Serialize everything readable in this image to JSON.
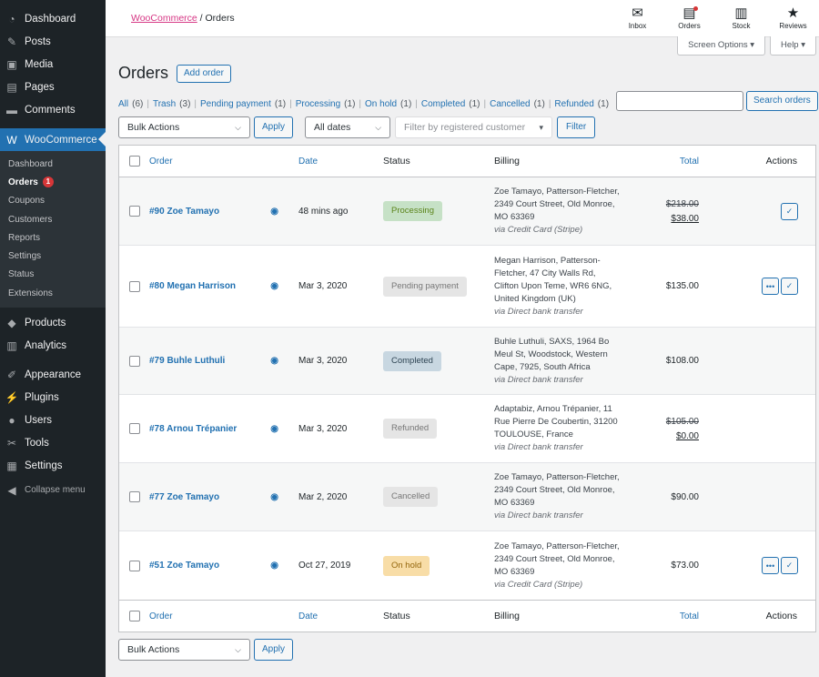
{
  "sidebar": {
    "top_items": [
      {
        "label": "Dashboard",
        "icon": "dashboard-icon"
      },
      {
        "label": "Posts",
        "icon": "pin-icon"
      },
      {
        "label": "Media",
        "icon": "media-icon"
      },
      {
        "label": "Pages",
        "icon": "pages-icon"
      },
      {
        "label": "Comments",
        "icon": "comment-icon"
      }
    ],
    "woocommerce": {
      "label": "WooCommerce",
      "icon": "woo-icon"
    },
    "submenu": [
      {
        "label": "Dashboard"
      },
      {
        "label": "Orders",
        "badge": "1"
      },
      {
        "label": "Coupons"
      },
      {
        "label": "Customers"
      },
      {
        "label": "Reports"
      },
      {
        "label": "Settings"
      },
      {
        "label": "Status"
      },
      {
        "label": "Extensions"
      }
    ],
    "mid_items": [
      {
        "label": "Products",
        "icon": "box-icon"
      },
      {
        "label": "Analytics",
        "icon": "bar-chart-icon"
      }
    ],
    "bottom_items": [
      {
        "label": "Appearance",
        "icon": "brush-icon"
      },
      {
        "label": "Plugins",
        "icon": "plugin-icon"
      },
      {
        "label": "Users",
        "icon": "user-icon"
      },
      {
        "label": "Tools",
        "icon": "wrench-icon"
      },
      {
        "label": "Settings",
        "icon": "settings-icon"
      }
    ],
    "collapse_label": "Collapse menu"
  },
  "topbar": {
    "breadcrumb_root": "WooCommerce",
    "breadcrumb_sep": "/",
    "breadcrumb_current": "Orders",
    "icons": [
      {
        "label": "Inbox",
        "icon": "inbox-icon"
      },
      {
        "label": "Orders",
        "icon": "orders-icon"
      },
      {
        "label": "Stock",
        "icon": "stock-icon"
      },
      {
        "label": "Reviews",
        "icon": "star-icon"
      }
    ],
    "screen_options": "Screen Options ▾",
    "help": "Help ▾"
  },
  "page": {
    "title": "Orders",
    "add_order": "Add order",
    "search_button": "Search orders",
    "filters": [
      {
        "label": "All",
        "count": "(6)"
      },
      {
        "label": "Trash",
        "count": "(3)"
      },
      {
        "label": "Pending payment",
        "count": "(1)"
      },
      {
        "label": "Processing",
        "count": "(1)"
      },
      {
        "label": "On hold",
        "count": "(1)"
      },
      {
        "label": "Completed",
        "count": "(1)"
      },
      {
        "label": "Cancelled",
        "count": "(1)"
      },
      {
        "label": "Refunded",
        "count": "(1)"
      }
    ],
    "bulk_actions": "Bulk Actions",
    "apply": "Apply",
    "all_dates": "All dates",
    "customer_placeholder": "Filter by registered customer",
    "filter_button": "Filter"
  },
  "table": {
    "columns": {
      "order": "Order",
      "date": "Date",
      "status": "Status",
      "billing": "Billing",
      "total": "Total",
      "actions": "Actions"
    },
    "rows": [
      {
        "order": "#90 Zoe Tamayo",
        "date": "48 mins ago",
        "status": "Processing",
        "status_bg": "#c6e1c6",
        "status_fg": "#5b841b",
        "billing": [
          "Zoe Tamayo, Patterson-Fletcher,",
          "2349 Court Street, Old Monroe,",
          "MO 63369"
        ],
        "via": "via Credit Card (Stripe)",
        "total_old": "$218.00",
        "total": "$38.00",
        "actions": [
          "complete"
        ]
      },
      {
        "order": "#80 Megan Harrison",
        "date": "Mar 3, 2020",
        "status": "Pending payment",
        "status_bg": "#e5e5e5",
        "status_fg": "#777777",
        "billing": [
          "Megan Harrison, Patterson-",
          "Fletcher, 47 City Walls Rd,",
          "Clifton Upon Teme, WR6 6NG,",
          "United Kingdom (UK)"
        ],
        "via": "via Direct bank transfer",
        "total_old": "",
        "total": "$135.00",
        "actions": [
          "processing",
          "complete"
        ]
      },
      {
        "order": "#79 Buhle Luthuli",
        "date": "Mar 3, 2020",
        "status": "Completed",
        "status_bg": "#c8d7e1",
        "status_fg": "#2e4453",
        "billing": [
          "Buhle Luthuli, SAXS, 1964 Bo",
          "Meul St, Woodstock, Western",
          "Cape, 7925, South Africa"
        ],
        "via": "via Direct bank transfer",
        "total_old": "",
        "total": "$108.00",
        "actions": []
      },
      {
        "order": "#78 Arnou Trépanier",
        "date": "Mar 3, 2020",
        "status": "Refunded",
        "status_bg": "#e5e5e5",
        "status_fg": "#777777",
        "billing": [
          "Adaptabiz, Arnou Trépanier, 11",
          "Rue Pierre De Coubertin, 31200",
          "TOULOUSE, France"
        ],
        "via": "via Direct bank transfer",
        "total_old": "$105.00",
        "total": "$0.00",
        "actions": []
      },
      {
        "order": "#77 Zoe Tamayo",
        "date": "Mar 2, 2020",
        "status": "Cancelled",
        "status_bg": "#e5e5e5",
        "status_fg": "#777777",
        "billing": [
          "Zoe Tamayo, Patterson-Fletcher,",
          "2349 Court Street, Old Monroe,",
          "MO 63369"
        ],
        "via": "via Direct bank transfer",
        "total_old": "",
        "total": "$90.00",
        "actions": []
      },
      {
        "order": "#51 Zoe Tamayo",
        "date": "Oct 27, 2019",
        "status": "On hold",
        "status_bg": "#f8dda7",
        "status_fg": "#94660c",
        "billing": [
          "Zoe Tamayo, Patterson-Fletcher,",
          "2349 Court Street, Old Monroe,",
          "MO 63369"
        ],
        "via": "via Credit Card (Stripe)",
        "total_old": "",
        "total": "$73.00",
        "actions": [
          "processing",
          "complete"
        ]
      }
    ]
  }
}
